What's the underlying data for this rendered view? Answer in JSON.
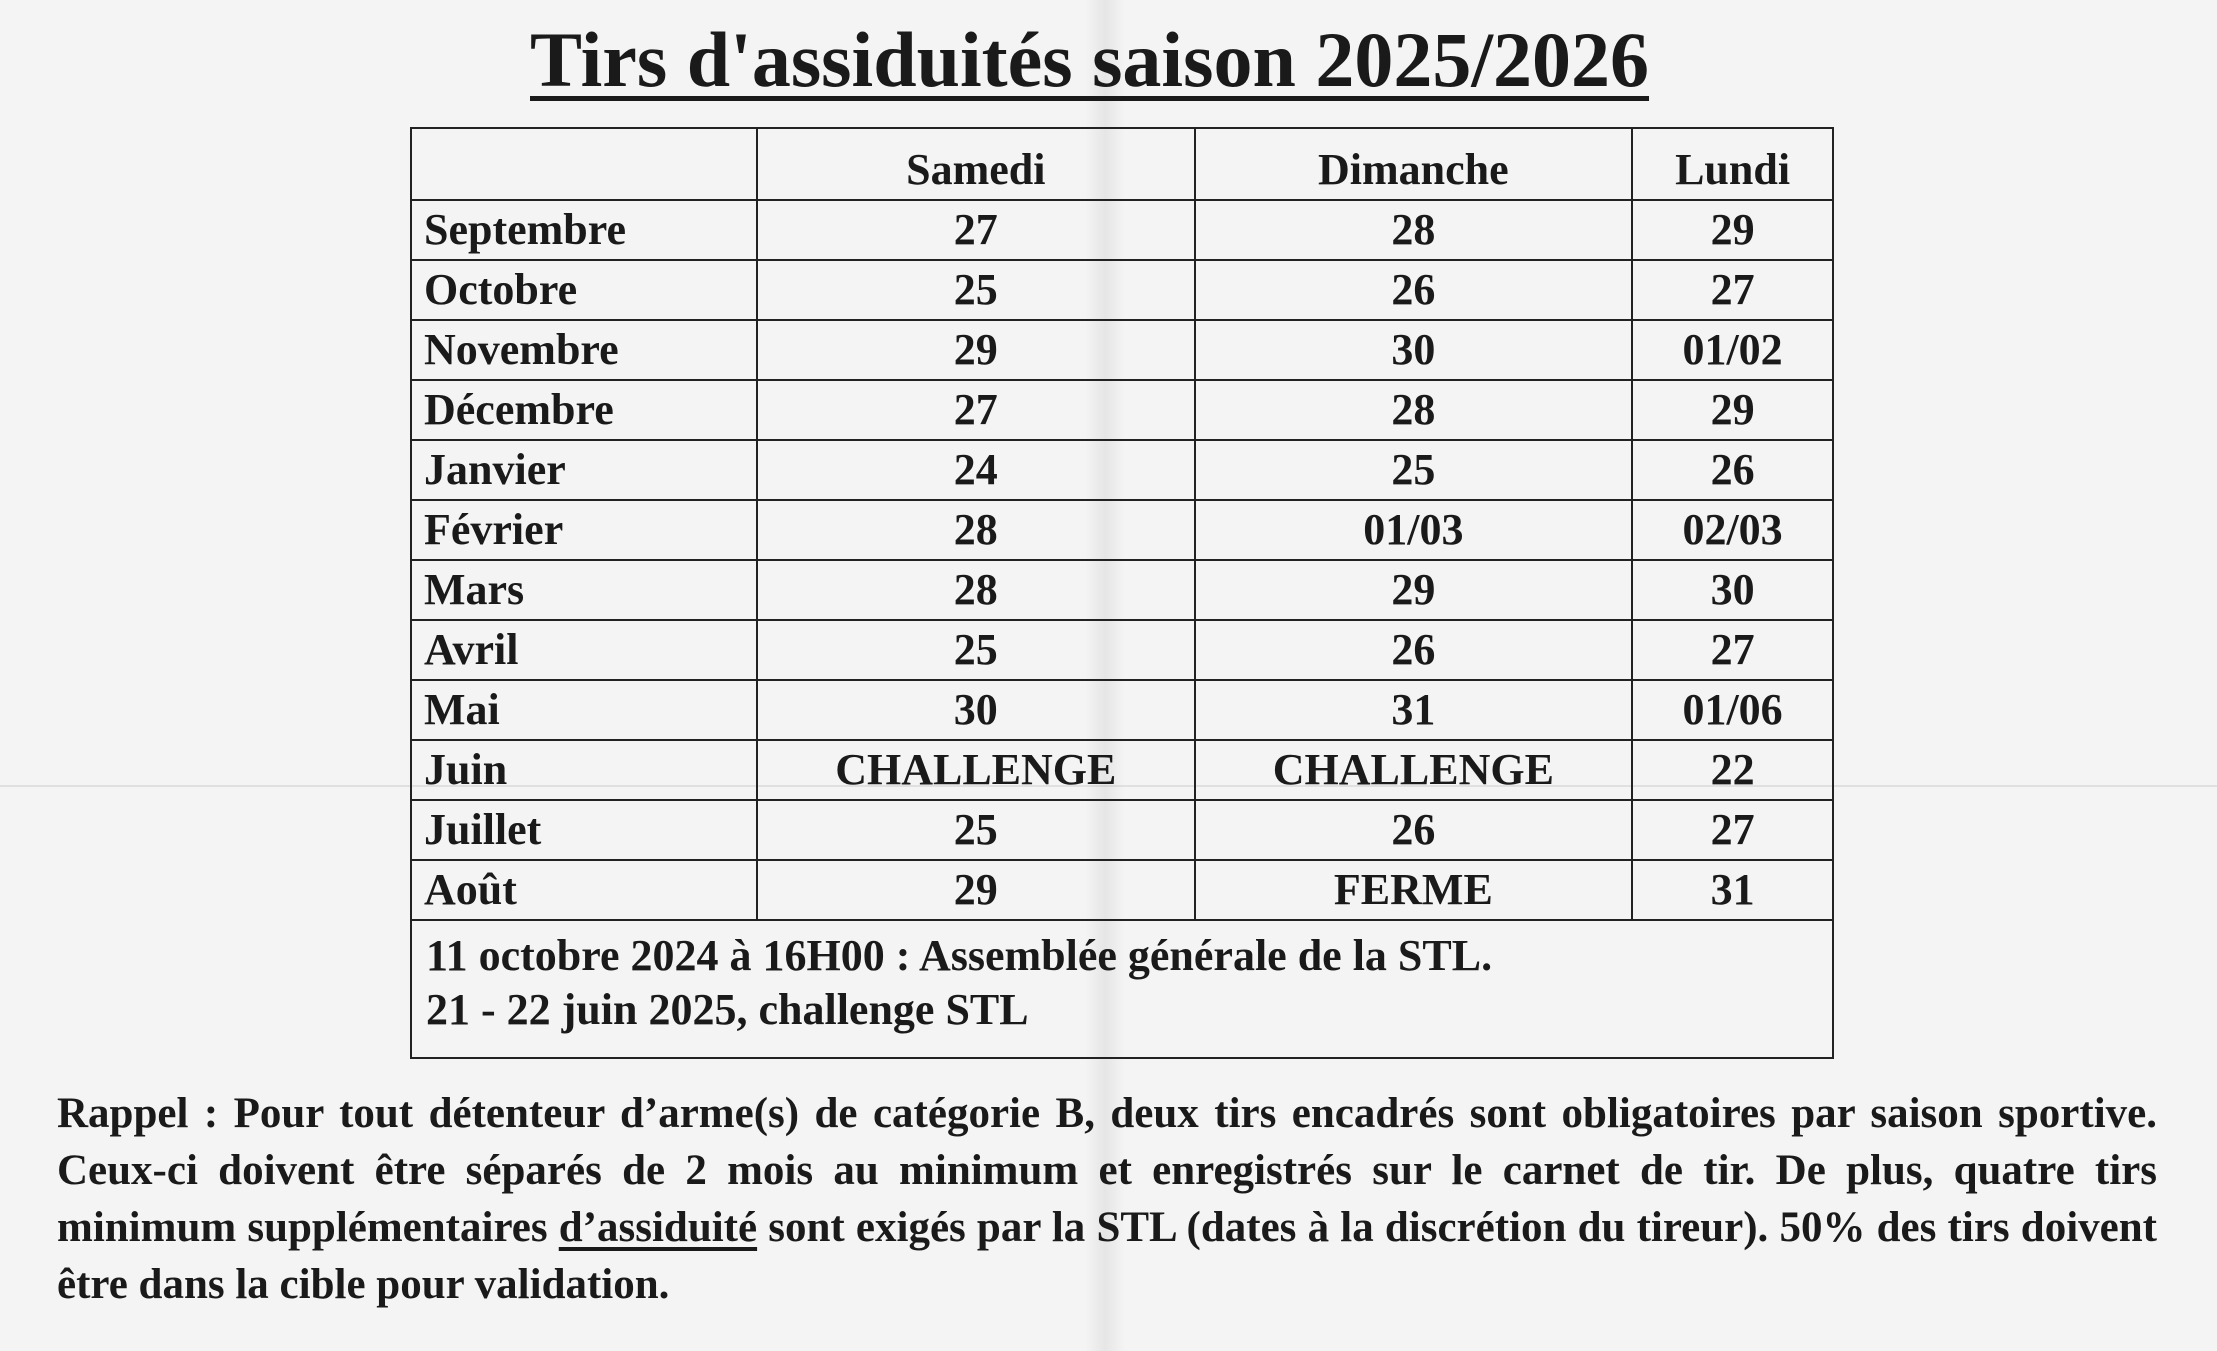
{
  "title": "Tirs d'assiduités saison 2025/2026",
  "table": {
    "headers": [
      "",
      "Samedi",
      "Dimanche",
      "Lundi"
    ],
    "rows": [
      {
        "month": "Septembre",
        "samedi": "27",
        "dimanche": "28",
        "lundi": "29"
      },
      {
        "month": "Octobre",
        "samedi": "25",
        "dimanche": "26",
        "lundi": "27"
      },
      {
        "month": "Novembre",
        "samedi": "29",
        "dimanche": "30",
        "lundi": "01/02"
      },
      {
        "month": "Décembre",
        "samedi": "27",
        "dimanche": "28",
        "lundi": "29"
      },
      {
        "month": "Janvier",
        "samedi": "24",
        "dimanche": "25",
        "lundi": "26"
      },
      {
        "month": "Février",
        "samedi": "28",
        "dimanche": "01/03",
        "lundi": "02/03"
      },
      {
        "month": "Mars",
        "samedi": "28",
        "dimanche": "29",
        "lundi": "30"
      },
      {
        "month": "Avril",
        "samedi": "25",
        "dimanche": "26",
        "lundi": "27"
      },
      {
        "month": "Mai",
        "samedi": "30",
        "dimanche": "31",
        "lundi": "01/06"
      },
      {
        "month": "Juin",
        "samedi": "CHALLENGE",
        "dimanche": "CHALLENGE",
        "lundi": "22"
      },
      {
        "month": "Juillet",
        "samedi": "25",
        "dimanche": "26",
        "lundi": "27"
      },
      {
        "month": "Août",
        "samedi": "29",
        "dimanche": "FERME",
        "lundi": "31"
      }
    ],
    "notes": [
      "11 octobre 2024 à 16H00 : Assemblée générale de la STL.",
      "21 - 22 juin 2025, challenge STL"
    ]
  },
  "rappel": {
    "before": "Rappel : Pour tout détenteur d’arme(s) de catégorie B, deux tirs encadrés sont obligatoires par saison sportive. Ceux-ci doivent être séparés de 2 mois au minimum et enregistrés sur le carnet de tir. De plus, quatre tirs minimum supplémentaires ",
    "underlined": "d’assiduité",
    "after": " sont exigés par la STL (dates à la discrétion du tireur). 50% des tirs doivent être dans la cible pour validation."
  }
}
